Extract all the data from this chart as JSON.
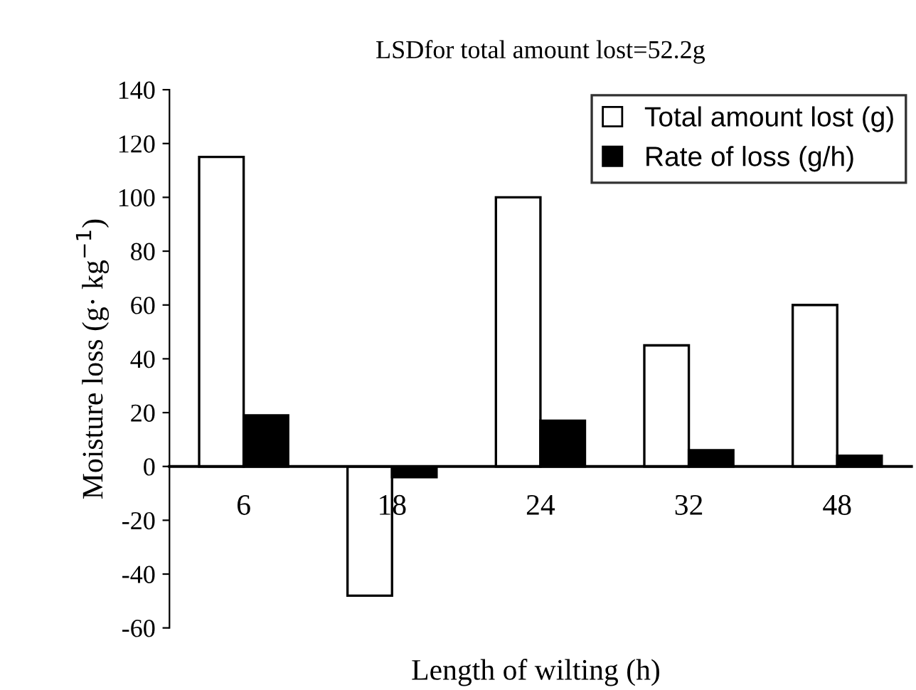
{
  "chart_data": {
    "type": "bar",
    "title": "LSDfor total amount lost=52.2g",
    "xlabel": "Length of wilting (h)",
    "ylabel": "Moisture loss (g· kg$^{−1}$)",
    "categories": [
      "6",
      "18",
      "24",
      "32",
      "48"
    ],
    "series": [
      {
        "name": "Total amount lost (g)",
        "color": "#ffffff",
        "values": [
          115,
          -48,
          100,
          45,
          60
        ]
      },
      {
        "name": "Rate of loss (g/h)",
        "color": "#000000",
        "values": [
          19,
          -4,
          17,
          6,
          4
        ]
      }
    ],
    "ylim": [
      -60,
      140
    ],
    "yticks": [
      -60,
      -40,
      -20,
      0,
      20,
      40,
      60,
      80,
      100,
      120,
      140
    ],
    "grid": false,
    "legend": "top right"
  }
}
